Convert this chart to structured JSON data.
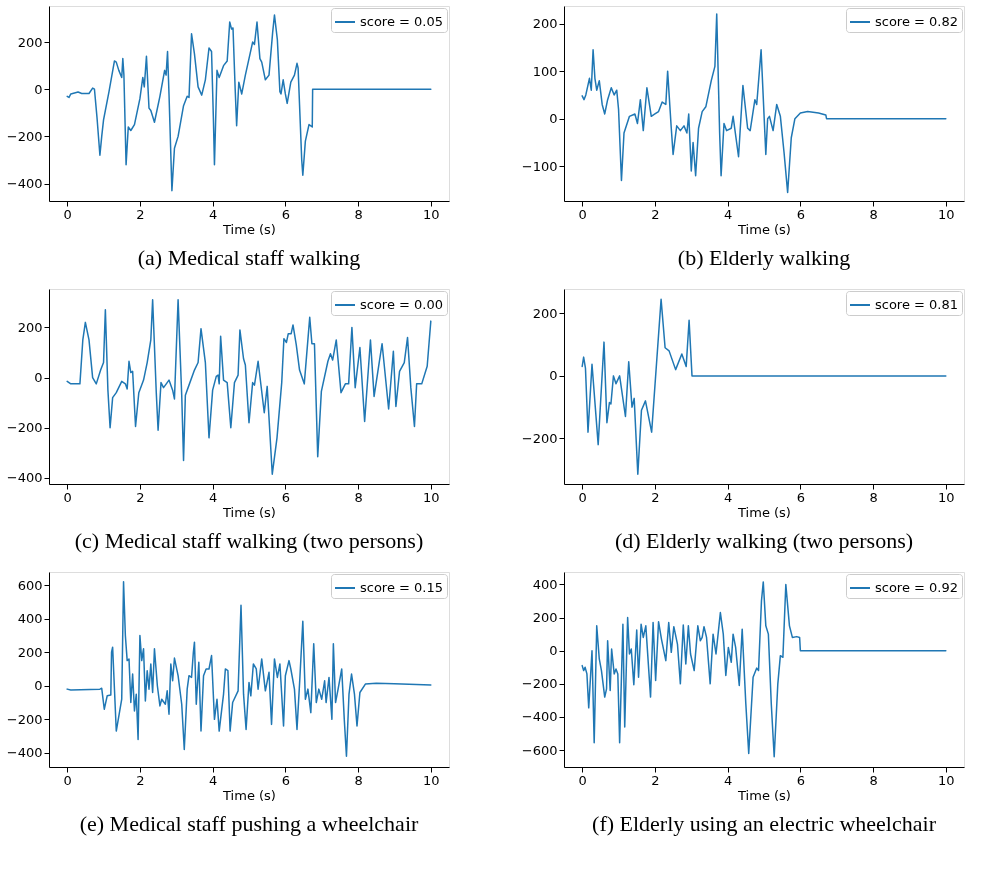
{
  "chart_data": [
    {
      "type": "line",
      "title": "(a)  Medical staff walking",
      "xlabel": "Time (s)",
      "legend": "top right",
      "grid": false,
      "xlim": [
        -0.5,
        10.5
      ],
      "xticks": [
        0,
        2,
        4,
        6,
        8,
        10
      ],
      "ylim": [
        -474,
        353
      ],
      "yticks": [
        -400,
        -200,
        0,
        200
      ],
      "series": [
        {
          "name": "score = 0.05",
          "color": "#1f77b4",
          "x": [
            0,
            0.05,
            0.1,
            0.3,
            0.4,
            0.6,
            0.7,
            0.75,
            0.82,
            0.9,
            0.95,
            1.0,
            1.15,
            1.3,
            1.35,
            1.42,
            1.5,
            1.53,
            1.56,
            1.62,
            1.68,
            1.75,
            1.85,
            2.0,
            2.08,
            2.12,
            2.18,
            2.25,
            2.3,
            2.4,
            2.55,
            2.68,
            2.72,
            2.76,
            2.8,
            2.88,
            2.95,
            3.05,
            3.2,
            3.3,
            3.35,
            3.42,
            3.5,
            3.6,
            3.7,
            3.8,
            3.9,
            3.97,
            4.02,
            4.05,
            4.12,
            4.18,
            4.3,
            4.4,
            4.47,
            4.52,
            4.56,
            4.62,
            4.66,
            4.72,
            4.8,
            4.9,
            5.0,
            5.1,
            5.15,
            5.22,
            5.3,
            5.35,
            5.45,
            5.55,
            5.65,
            5.7,
            5.78,
            5.85,
            5.88,
            5.94,
            6.0,
            6.05,
            6.15,
            6.25,
            6.32,
            6.35,
            6.45,
            6.48,
            6.55,
            6.65,
            6.74,
            6.75,
            10
          ],
          "values": [
            -30,
            -35,
            -20,
            -12,
            -18,
            -18,
            5,
            0,
            -120,
            -280,
            -200,
            -130,
            -10,
            120,
            115,
            80,
            50,
            130,
            60,
            -320,
            -160,
            -175,
            -150,
            -40,
            50,
            10,
            140,
            -80,
            -90,
            -140,
            -30,
            80,
            60,
            160,
            -20,
            -430,
            -250,
            -200,
            -70,
            -30,
            -35,
            235,
            150,
            10,
            -25,
            40,
            175,
            160,
            -120,
            -320,
            80,
            50,
            100,
            120,
            285,
            255,
            260,
            0,
            -155,
            30,
            -20,
            60,
            130,
            200,
            190,
            285,
            130,
            115,
            40,
            60,
            240,
            315,
            210,
            -10,
            -20,
            40,
            -20,
            -60,
            30,
            60,
            110,
            90,
            -300,
            -365,
            -220,
            -150,
            -160,
            0,
            0
          ]
        }
      ]
    },
    {
      "type": "line",
      "title": "(b)  Elderly walking",
      "xlabel": "Time (s)",
      "legend": "top right",
      "grid": false,
      "xlim": [
        -0.5,
        10.5
      ],
      "xticks": [
        0,
        2,
        4,
        6,
        8,
        10
      ],
      "ylim": [
        -173,
        237
      ],
      "yticks": [
        -100,
        0,
        100,
        200
      ],
      "series": [
        {
          "name": "score = 0.82",
          "color": "#1f77b4",
          "x": [
            0,
            0.05,
            0.1,
            0.2,
            0.25,
            0.3,
            0.35,
            0.4,
            0.47,
            0.55,
            0.62,
            0.7,
            0.8,
            0.88,
            0.95,
            1.0,
            1.08,
            1.15,
            1.3,
            1.45,
            1.52,
            1.6,
            1.68,
            1.78,
            1.9,
            2.0,
            2.1,
            2.2,
            2.3,
            2.35,
            2.45,
            2.5,
            2.6,
            2.7,
            2.8,
            2.88,
            2.93,
            3.0,
            3.05,
            3.12,
            3.2,
            3.3,
            3.4,
            3.55,
            3.65,
            3.7,
            3.78,
            3.82,
            3.9,
            3.97,
            4.1,
            4.15,
            4.3,
            4.42,
            4.55,
            4.62,
            4.75,
            4.8,
            4.92,
            5.05,
            5.1,
            5.15,
            5.25,
            5.35,
            5.45,
            5.55,
            5.65,
            5.75,
            5.85,
            6.0,
            6.2,
            6.5,
            6.7,
            6.72,
            10
          ],
          "values": [
            48,
            40,
            50,
            85,
            60,
            145,
            85,
            60,
            80,
            30,
            10,
            40,
            65,
            50,
            60,
            20,
            -130,
            -30,
            5,
            10,
            -10,
            40,
            -25,
            65,
            5,
            10,
            15,
            35,
            30,
            100,
            -20,
            -75,
            -15,
            -25,
            -15,
            -30,
            10,
            -110,
            -50,
            -120,
            -20,
            15,
            25,
            80,
            110,
            220,
            -30,
            -120,
            -10,
            -25,
            -20,
            5,
            -80,
            70,
            -20,
            -25,
            40,
            30,
            145,
            -75,
            0,
            5,
            -25,
            30,
            5,
            -70,
            -155,
            -40,
            0,
            12,
            15,
            12,
            8,
            0,
            0
          ]
        }
      ]
    },
    {
      "type": "line",
      "title": "(c)  Medical staff walking (two persons)",
      "xlabel": "Time (s)",
      "legend": "top right",
      "grid": false,
      "xlim": [
        -0.5,
        10.5
      ],
      "xticks": [
        0,
        2,
        4,
        6,
        8,
        10
      ],
      "ylim": [
        -424,
        353
      ],
      "yticks": [
        -400,
        -200,
        0,
        200
      ],
      "series": [
        {
          "name": "score = 0.00",
          "color": "#1f77b4",
          "x": [
            0,
            0.1,
            0.35,
            0.43,
            0.5,
            0.6,
            0.7,
            0.8,
            0.92,
            1.0,
            1.05,
            1.12,
            1.18,
            1.25,
            1.35,
            1.5,
            1.6,
            1.65,
            1.7,
            1.75,
            1.8,
            1.88,
            1.97,
            2.1,
            2.2,
            2.3,
            2.35,
            2.45,
            2.5,
            2.58,
            2.65,
            2.75,
            2.8,
            2.9,
            2.95,
            3.05,
            3.15,
            3.2,
            3.25,
            3.35,
            3.5,
            3.6,
            3.68,
            3.8,
            3.9,
            4.0,
            4.1,
            4.15,
            4.18,
            4.22,
            4.3,
            4.4,
            4.5,
            4.6,
            4.7,
            4.75,
            4.85,
            4.9,
            5.0,
            5.1,
            5.15,
            5.25,
            5.42,
            5.5,
            5.64,
            5.77,
            5.9,
            5.96,
            6.03,
            6.08,
            6.16,
            6.21,
            6.3,
            6.39,
            6.52,
            6.67,
            6.73,
            6.8,
            6.89,
            6.99,
            7.17,
            7.24,
            7.3,
            7.4,
            7.53,
            7.65,
            7.74,
            7.83,
            7.92,
            8.05,
            8.18,
            8.34,
            8.44,
            8.57,
            8.66,
            8.84,
            8.97,
            9.04,
            9.14,
            9.27,
            9.36,
            9.45,
            9.55,
            9.61,
            9.75,
            9.9,
            10
          ],
          "values": [
            -15,
            -25,
            -25,
            150,
            220,
            150,
            0,
            -25,
            30,
            60,
            270,
            -50,
            -200,
            -80,
            -60,
            -15,
            -25,
            -45,
            65,
            20,
            25,
            -195,
            -60,
            -10,
            60,
            150,
            310,
            -60,
            -210,
            -20,
            -40,
            -20,
            -10,
            -50,
            -85,
            310,
            -70,
            -330,
            -70,
            -30,
            30,
            60,
            195,
            60,
            -240,
            -50,
            5,
            10,
            -25,
            165,
            -10,
            -20,
            -200,
            -20,
            10,
            190,
            75,
            50,
            -180,
            -20,
            -30,
            65,
            -140,
            -35,
            -385,
            -240,
            -20,
            155,
            140,
            175,
            175,
            210,
            130,
            30,
            -25,
            240,
            135,
            135,
            -315,
            -55,
            65,
            95,
            70,
            150,
            -60,
            -25,
            -25,
            200,
            -40,
            120,
            -175,
            150,
            -75,
            50,
            135,
            -125,
            105,
            -115,
            25,
            60,
            160,
            -40,
            -195,
            -25,
            -25,
            45,
            225
          ]
        }
      ]
    },
    {
      "type": "line",
      "title": "(d)  Elderly walking (two persons)",
      "xlabel": "Time (s)",
      "legend": "top right",
      "grid": false,
      "xlim": [
        -0.5,
        10.5
      ],
      "xticks": [
        0,
        2,
        4,
        6,
        8,
        10
      ],
      "ylim": [
        -346,
        278
      ],
      "yticks": [
        -200,
        0,
        200
      ],
      "series": [
        {
          "name": "score = 0.81",
          "color": "#1f77b4",
          "x": [
            0,
            0.04,
            0.09,
            0.16,
            0.27,
            0.44,
            0.6,
            0.68,
            0.75,
            0.79,
            0.86,
            0.93,
            1.03,
            1.19,
            1.28,
            1.37,
            1.43,
            1.53,
            1.63,
            1.74,
            1.91,
            2.17,
            2.28,
            2.39,
            2.57,
            2.74,
            2.86,
            2.94,
            3.02,
            10
          ],
          "values": [
            30,
            60,
            25,
            -180,
            37,
            -220,
            108,
            -150,
            -85,
            -90,
            0,
            -25,
            0,
            -130,
            45,
            -100,
            -72,
            -315,
            -110,
            -80,
            -180,
            245,
            90,
            80,
            20,
            70,
            30,
            178,
            0,
            0
          ]
        }
      ]
    },
    {
      "type": "line",
      "title": "(e)  Medical staff pushing a wheelchair",
      "xlabel": "Time (s)",
      "legend": "top right",
      "grid": false,
      "xlim": [
        -0.5,
        10.5
      ],
      "xticks": [
        0,
        2,
        4,
        6,
        8,
        10
      ],
      "ylim": [
        -484,
        678
      ],
      "yticks": [
        -400,
        -200,
        0,
        200,
        400,
        600
      ],
      "series": [
        {
          "name": "score = 0.15",
          "color": "#1f77b4",
          "x": [
            0,
            0.1,
            0.9,
            0.95,
            1.02,
            1.1,
            1.2,
            1.22,
            1.25,
            1.35,
            1.5,
            1.55,
            1.6,
            1.65,
            1.7,
            1.75,
            1.8,
            1.85,
            1.9,
            1.95,
            2.0,
            2.05,
            2.1,
            2.15,
            2.2,
            2.25,
            2.3,
            2.35,
            2.4,
            2.48,
            2.55,
            2.6,
            2.7,
            2.75,
            2.8,
            2.85,
            2.9,
            2.95,
            3.05,
            3.15,
            3.22,
            3.3,
            3.35,
            3.42,
            3.47,
            3.5,
            3.55,
            3.62,
            3.68,
            3.75,
            3.82,
            3.9,
            3.97,
            4.05,
            4.12,
            4.18,
            4.3,
            4.35,
            4.42,
            4.48,
            4.55,
            4.7,
            4.78,
            4.85,
            4.92,
            5.0,
            5.05,
            5.12,
            5.2,
            5.25,
            5.35,
            5.45,
            5.55,
            5.62,
            5.7,
            5.78,
            5.85,
            5.95,
            6.0,
            6.1,
            6.15,
            6.25,
            6.32,
            6.4,
            6.48,
            6.55,
            6.62,
            6.7,
            6.78,
            6.85,
            6.92,
            7.0,
            7.08,
            7.12,
            7.2,
            7.28,
            7.32,
            7.38,
            7.45,
            7.55,
            7.62,
            7.68,
            7.75,
            7.82,
            7.9,
            7.97,
            8.05,
            8.2,
            8.5,
            9.0,
            10
          ],
          "values": [
            -20,
            -25,
            -20,
            -15,
            -140,
            -60,
            -55,
            200,
            230,
            -270,
            -80,
            620,
            300,
            150,
            160,
            -100,
            70,
            -150,
            -50,
            -320,
            300,
            150,
            220,
            -90,
            90,
            -20,
            130,
            -40,
            220,
            0,
            -120,
            -80,
            -110,
            -30,
            -170,
            130,
            30,
            165,
            60,
            -110,
            -380,
            -20,
            60,
            50,
            200,
            260,
            -110,
            140,
            -270,
            60,
            100,
            100,
            180,
            -200,
            -80,
            -270,
            -50,
            100,
            90,
            -270,
            -100,
            -30,
            480,
            -50,
            -260,
            20,
            -60,
            130,
            100,
            -20,
            160,
            -30,
            80,
            -230,
            160,
            50,
            130,
            -240,
            60,
            150,
            100,
            -20,
            -260,
            50,
            385,
            -80,
            -20,
            -160,
            250,
            -100,
            -20,
            -80,
            30,
            -100,
            50,
            -200,
            250,
            -100,
            -20,
            100,
            -200,
            -420,
            -50,
            70,
            -50,
            -240,
            -40,
            10,
            15,
            12,
            5
          ]
        }
      ]
    },
    {
      "type": "line",
      "title": "(f)  Elderly using an electric wheelchair",
      "xlabel": "Time (s)",
      "legend": "top right",
      "grid": false,
      "xlim": [
        -0.5,
        10.5
      ],
      "xticks": [
        0,
        2,
        4,
        6,
        8,
        10
      ],
      "ylim": [
        -702,
        475
      ],
      "yticks": [
        -600,
        -400,
        -200,
        0,
        200,
        400
      ],
      "series": [
        {
          "name": "score = 0.92",
          "color": "#1f77b4",
          "x": [
            0,
            0.04,
            0.08,
            0.13,
            0.18,
            0.27,
            0.33,
            0.4,
            0.47,
            0.53,
            0.62,
            0.67,
            0.7,
            0.77,
            0.81,
            0.88,
            0.93,
            0.98,
            1.03,
            1.12,
            1.17,
            1.25,
            1.3,
            1.35,
            1.42,
            1.5,
            1.55,
            1.62,
            1.68,
            1.75,
            1.88,
            1.95,
            2.02,
            2.1,
            2.18,
            2.3,
            2.38,
            2.45,
            2.52,
            2.62,
            2.7,
            2.78,
            2.85,
            2.92,
            2.98,
            3.08,
            3.18,
            3.25,
            3.3,
            3.35,
            3.42,
            3.52,
            3.6,
            3.68,
            3.8,
            3.88,
            3.95,
            4.02,
            4.1,
            4.15,
            4.22,
            4.32,
            4.4,
            4.5,
            4.58,
            4.7,
            4.8,
            4.85,
            4.93,
            4.98,
            5.05,
            5.12,
            5.2,
            5.28,
            5.38,
            5.45,
            5.52,
            5.6,
            5.7,
            5.78,
            5.9,
            5.98,
            6.0,
            10
          ],
          "values": [
            -90,
            -120,
            -100,
            -140,
            -345,
            0,
            -555,
            150,
            -50,
            -120,
            -280,
            -230,
            60,
            -240,
            10,
            -140,
            -110,
            -140,
            -555,
            160,
            -460,
            200,
            -20,
            10,
            -205,
            125,
            -160,
            160,
            80,
            150,
            -280,
            170,
            -180,
            175,
            70,
            -60,
            170,
            -10,
            145,
            40,
            -200,
            155,
            -80,
            150,
            -20,
            -120,
            150,
            60,
            80,
            145,
            80,
            -200,
            100,
            -20,
            230,
            100,
            -150,
            20,
            -70,
            100,
            20,
            -210,
            130,
            -320,
            -620,
            -160,
            -105,
            -120,
            300,
            415,
            150,
            100,
            -320,
            -640,
            -200,
            -30,
            -40,
            400,
            150,
            80,
            85,
            80,
            0,
            0
          ]
        }
      ]
    }
  ]
}
